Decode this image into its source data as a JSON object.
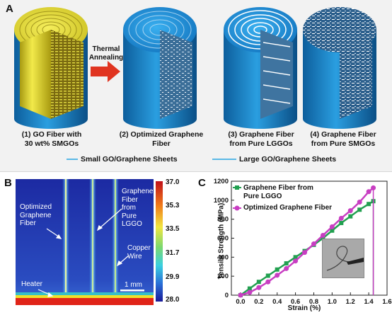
{
  "figure": {
    "panel_a": {
      "letter": "A",
      "arrow_label": "Thermal\nAnnealing",
      "captions": [
        "(1) GO Fiber with\n30 wt% SMGOs",
        "(2) Optimized Graphene\nFiber",
        "(3) Graphene Fiber\nfrom Pure LGGOs",
        "(4) Graphene Fiber\nfrom Pure SMGOs"
      ],
      "legend": {
        "small": "Small GO/Graphene Sheets",
        "large": "Large GO/Graphene Sheets"
      },
      "colors": {
        "blue_fiber": "#1f8fd2",
        "yellow_fiber": "#e8e246",
        "arrow": "#e03420"
      }
    },
    "panel_b": {
      "letter": "B",
      "labels": {
        "optimized": "Optimized\nGraphene\nFiber",
        "pure_lggo": "Graphene\nFiber\nfrom\nPure\nLGGO",
        "copper": "Copper\nWire",
        "heater": "Heater",
        "scale": "1 mm"
      },
      "colorbar_ticks": [
        "37.0",
        "35.3",
        "33.5",
        "31.7",
        "29.9",
        "28.0"
      ]
    },
    "panel_c": {
      "letter": "C"
    }
  },
  "chart_data": {
    "type": "line",
    "xlabel": "Strain (%)",
    "ylabel": "Tensile Strength (MPa)",
    "xlim": [
      -0.1,
      1.6
    ],
    "ylim": [
      0,
      1200
    ],
    "x_ticks": [
      "0.0",
      "0.2",
      "0.4",
      "0.6",
      "0.8",
      "1.0",
      "1.2",
      "1.4",
      "1.6"
    ],
    "y_ticks": [
      "0",
      "200",
      "400",
      "600",
      "800",
      "1000",
      "1200"
    ],
    "legend_position": "top-left",
    "series": [
      {
        "name": "Graphene Fiber from\nPure LGGO",
        "color": "#22a050",
        "marker": "square",
        "x": [
          0.0,
          0.1,
          0.2,
          0.3,
          0.4,
          0.5,
          0.6,
          0.7,
          0.8,
          0.9,
          1.0,
          1.1,
          1.2,
          1.3,
          1.4,
          1.45
        ],
        "y": [
          0,
          70,
          140,
          205,
          270,
          335,
          400,
          465,
          530,
          600,
          680,
          760,
          830,
          900,
          960,
          990
        ]
      },
      {
        "name": "Optimized Graphene Fiber",
        "color": "#c83ec2",
        "marker": "circle",
        "x": [
          0.0,
          0.1,
          0.2,
          0.3,
          0.4,
          0.5,
          0.6,
          0.7,
          0.8,
          0.9,
          1.0,
          1.1,
          1.2,
          1.3,
          1.4,
          1.45
        ],
        "y": [
          0,
          30,
          80,
          140,
          210,
          280,
          360,
          450,
          540,
          630,
          720,
          810,
          890,
          980,
          1090,
          1130
        ]
      }
    ]
  }
}
